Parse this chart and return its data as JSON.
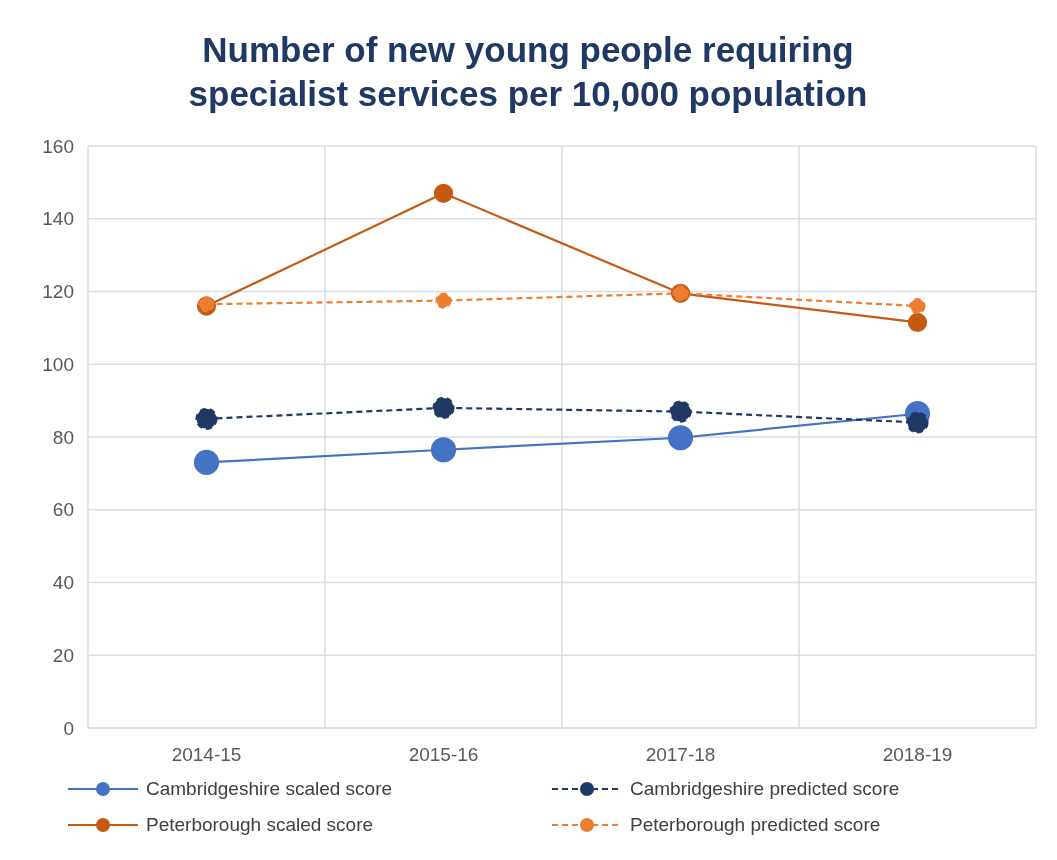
{
  "chart_data": {
    "type": "line",
    "title": "Number of new young people requiring specialist services per 10,000 population",
    "categories": [
      "2014-15",
      "2015-16",
      "2017-18",
      "2018-19"
    ],
    "series": [
      {
        "name": "Cambridgeshire scaled score",
        "color": "#4472c4",
        "values": [
          73,
          76.5,
          79.8,
          86.4
        ],
        "line_style": "solid"
      },
      {
        "name": "Cambridgeshire predicted score",
        "color": "#203864",
        "values": [
          85,
          88,
          87,
          84
        ],
        "line_style": "dashed"
      },
      {
        "name": "Peterborough scaled score",
        "color": "#c55a11",
        "values": [
          116,
          147,
          119.5,
          111.5
        ],
        "line_style": "solid"
      },
      {
        "name": "Peterborough predicted score",
        "color": "#ed7d31",
        "values": [
          116.5,
          117.5,
          119.5,
          116
        ],
        "line_style": "dashed"
      }
    ],
    "ylim": [
      0,
      160
    ],
    "yticks": [
      0,
      20,
      40,
      60,
      80,
      100,
      120,
      140,
      160
    ],
    "grid": true,
    "legend": "bottom",
    "marker": "circle"
  }
}
